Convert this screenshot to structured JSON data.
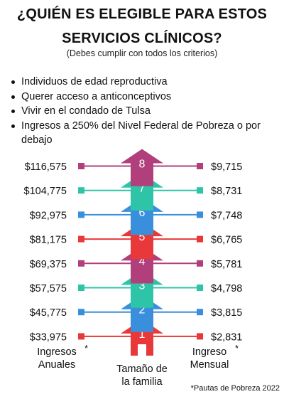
{
  "title_line1": "¿QUIÉN ES ELEGIBLE PARA ESTOS",
  "title_line2": "SERVICIOS CLÍNICOS?",
  "subtitle": "(Debes cumplir con todos los criterios)",
  "criteria": [
    "Individuos de edad reproductiva",
    "Querer acceso a anticonceptivos",
    "Vivir en el condado de Tulsa",
    "Ingresos a 250% del Nivel Federal de Pobreza o por debajo"
  ],
  "rows": [
    {
      "size": "8",
      "annual": "$116,575",
      "monthly": "$9,715",
      "color": "#b13f7c"
    },
    {
      "size": "7",
      "annual": "$104,775",
      "monthly": "$8,731",
      "color": "#2ec4a8"
    },
    {
      "size": "6",
      "annual": "$92,975",
      "monthly": "$7,748",
      "color": "#3a8fdc"
    },
    {
      "size": "5",
      "annual": "$81,175",
      "monthly": "$6,765",
      "color": "#e8383a"
    },
    {
      "size": "4",
      "annual": "$69,375",
      "monthly": "$5,781",
      "color": "#b13f7c"
    },
    {
      "size": "3",
      "annual": "$57,575",
      "monthly": "$4,798",
      "color": "#2ec4a8"
    },
    {
      "size": "2",
      "annual": "$45,775",
      "monthly": "$3,815",
      "color": "#3a8fdc"
    },
    {
      "size": "1",
      "annual": "$33,975",
      "monthly": "$2,831",
      "color": "#e8383a"
    }
  ],
  "labels": {
    "annual_line1": "Ingresos",
    "annual_line2": "Anuales",
    "family_line1": "Tamaño de",
    "family_line2": "la familia",
    "monthly_line1": "Ingreso",
    "monthly_line2": "Mensual",
    "asterisk": "*"
  },
  "footnote": "*Pautas de Pobreza 2022"
}
